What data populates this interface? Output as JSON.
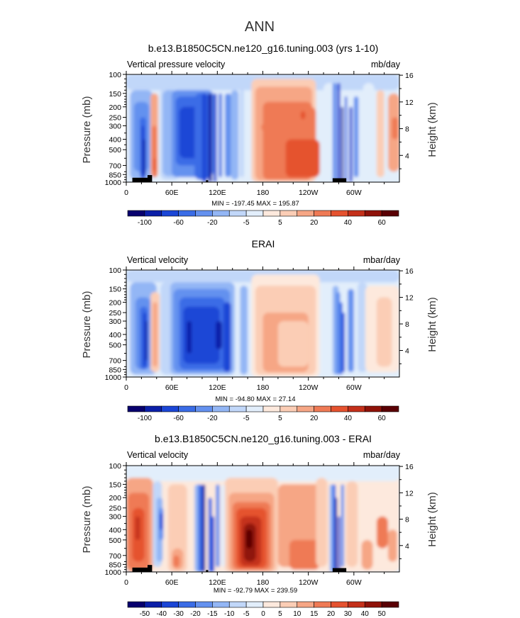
{
  "figure": {
    "title": "ANN"
  },
  "chart_data": [
    {
      "type": "heatmap",
      "title": "b.e13.B1850C5CN.ne120_g16.tuning.003 (yrs 1-10)",
      "left_label": "Vertical pressure velocity",
      "right_label": "mb/day",
      "ylabel": "Pressure (mb)",
      "y2label": "Height (km)",
      "minmax_text": "MIN = -197.45   MAX = 195.87",
      "x_ticks": [
        "0",
        "60E",
        "120E",
        "180",
        "120W",
        "60W"
      ],
      "y_ticks": [
        "100",
        "150",
        "200",
        "250",
        "300",
        "400",
        "500",
        "700",
        "850",
        "1000"
      ],
      "y2_ticks": [
        "16",
        "12",
        "8",
        "4"
      ],
      "colorbar_labels": [
        "-100",
        "-60",
        "-20",
        "-5",
        "5",
        "20",
        "40",
        "60"
      ],
      "colorbar_levels": [
        "-100",
        "-80",
        "-60",
        "-40",
        "-20",
        "-10",
        "-5",
        "0",
        "5",
        "10",
        "20",
        "30",
        "40",
        "60",
        "80"
      ],
      "min": -197.45,
      "max": 195.87
    },
    {
      "type": "heatmap",
      "title": "ERAI",
      "left_label": "Vertical velocity",
      "right_label": "mbar/day",
      "ylabel": "Pressure (mb)",
      "y2label": "Height (km)",
      "minmax_text": "MIN = -94.80   MAX =  27.14",
      "x_ticks": [
        "0",
        "60E",
        "120E",
        "180",
        "120W",
        "60W"
      ],
      "y_ticks": [
        "100",
        "150",
        "200",
        "250",
        "300",
        "400",
        "500",
        "700",
        "850",
        "1000"
      ],
      "y2_ticks": [
        "16",
        "12",
        "8",
        "4"
      ],
      "colorbar_labels": [
        "-100",
        "-60",
        "-20",
        "-5",
        "5",
        "20",
        "40",
        "60"
      ],
      "colorbar_levels": [
        "-100",
        "-80",
        "-60",
        "-40",
        "-20",
        "-10",
        "-5",
        "0",
        "5",
        "10",
        "20",
        "30",
        "40",
        "60",
        "80"
      ],
      "min": -94.8,
      "max": 27.14
    },
    {
      "type": "heatmap",
      "title": "b.e13.B1850C5CN.ne120_g16.tuning.003 - ERAI",
      "left_label": "Vertical velocity",
      "right_label": "mbar/day",
      "ylabel": "Pressure (mb)",
      "y2label": "Height (km)",
      "minmax_text": "MIN = -92.79   MAX = 239.59",
      "x_ticks": [
        "0",
        "60E",
        "120E",
        "180",
        "120W",
        "60W"
      ],
      "y_ticks": [
        "100",
        "150",
        "200",
        "250",
        "300",
        "400",
        "500",
        "700",
        "850",
        "1000"
      ],
      "y2_ticks": [
        "16",
        "12",
        "8",
        "4"
      ],
      "colorbar_labels": [
        "-50",
        "-40",
        "-30",
        "-20",
        "-15",
        "-10",
        "-5",
        "0",
        "5",
        "10",
        "15",
        "20",
        "30",
        "40",
        "50"
      ],
      "colorbar_levels": [
        "-50",
        "-40",
        "-30",
        "-20",
        "-15",
        "-10",
        "-5",
        "0",
        "5",
        "10",
        "15",
        "20",
        "30",
        "40",
        "50"
      ],
      "min": -92.79,
      "max": 239.59
    }
  ],
  "colors": {
    "palette": [
      "#08006e",
      "#0b1fa8",
      "#1b46d6",
      "#3a6ce6",
      "#6491ef",
      "#93b6f5",
      "#c1d7f9",
      "#e2eefb",
      "#fde9dd",
      "#fbcdb5",
      "#f6a685",
      "#ef7a55",
      "#e5522f",
      "#c4301a",
      "#8f1209",
      "#5a0004"
    ]
  }
}
